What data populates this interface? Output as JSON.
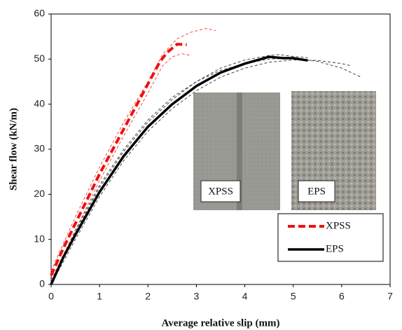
{
  "chart_data": {
    "type": "line",
    "x_label": "Average relative slip (mm)",
    "y_label": "Shear flow (kN/m)",
    "xlim": [
      0,
      7
    ],
    "ylim": [
      0,
      60
    ],
    "xticks": [
      0,
      1,
      2,
      3,
      4,
      5,
      6,
      7
    ],
    "yticks": [
      0,
      10,
      20,
      30,
      40,
      50,
      60
    ],
    "legend": "lower right",
    "series": [
      {
        "color": "#ff4444",
        "dashed": true,
        "width": 1,
        "x": [
          0,
          0.5,
          1,
          1.5,
          2,
          2.3,
          2.6,
          2.9,
          3.2,
          3.4
        ],
        "values": [
          3,
          15,
          26,
          36,
          45,
          51,
          54.5,
          56,
          56.8,
          56.3
        ]
      },
      {
        "color": "#ff4444",
        "dashed": true,
        "width": 1,
        "x": [
          0,
          0.5,
          1,
          1.5,
          2,
          2.3,
          2.5,
          2.7,
          2.9
        ],
        "values": [
          1,
          12,
          23,
          33,
          42.5,
          48.5,
          50.5,
          51.2,
          50.8
        ]
      },
      {
        "color": "#444444",
        "dashed": true,
        "width": 1,
        "x": [
          0,
          0.5,
          1,
          1.5,
          2,
          2.5,
          3,
          3.5,
          4,
          4.5,
          5,
          5.5,
          6,
          6.4
        ],
        "values": [
          0,
          12,
          22,
          30,
          36.5,
          41.5,
          45,
          47.5,
          49,
          50,
          50.2,
          49.5,
          48,
          46
        ]
      },
      {
        "color": "#444444",
        "dashed": true,
        "width": 1,
        "x": [
          0,
          0.5,
          1,
          1.5,
          2,
          2.5,
          3,
          3.5,
          4,
          4.5,
          5,
          5.5,
          6,
          6.2
        ],
        "values": [
          0,
          10,
          19.5,
          27.5,
          34,
          39,
          43,
          46,
          48,
          49.3,
          49.8,
          49.7,
          49,
          48.5
        ]
      },
      {
        "color": "#444444",
        "dashed": true,
        "width": 1,
        "x": [
          0,
          0.5,
          1,
          1.5,
          2,
          2.5,
          3,
          3.5,
          4,
          4.5,
          4.7,
          5,
          5.3
        ],
        "values": [
          0,
          11.5,
          21.5,
          29.5,
          36,
          41,
          45,
          48,
          49.8,
          50.8,
          51,
          50.6,
          50.3
        ]
      },
      {
        "name": "XPSS",
        "color": "#ee1111",
        "dashed": true,
        "width": 4,
        "x": [
          0,
          0.25,
          0.5,
          0.75,
          1,
          1.25,
          1.5,
          1.75,
          2,
          2.25,
          2.4,
          2.6,
          2.8
        ],
        "values": [
          2,
          8,
          13.5,
          19,
          24.5,
          29.5,
          34.5,
          39.5,
          44.5,
          49.5,
          51.5,
          53.3,
          53.2
        ]
      },
      {
        "name": "EPS",
        "color": "#000000",
        "dashed": false,
        "width": 3.5,
        "x": [
          0,
          0.25,
          0.5,
          1,
          1.5,
          2,
          2.5,
          3,
          3.5,
          4,
          4.5,
          4.8,
          5,
          5.3
        ],
        "values": [
          0,
          6,
          11,
          20.5,
          28.5,
          35,
          40,
          44,
          47,
          49,
          50.5,
          50.2,
          50.2,
          49.7
        ]
      }
    ],
    "insets": [
      {
        "label": "XPSS"
      },
      {
        "label": "EPS"
      }
    ]
  }
}
